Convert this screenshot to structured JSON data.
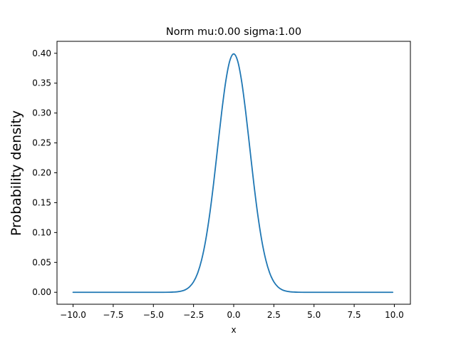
{
  "chart_data": {
    "type": "line",
    "title": "Norm mu:0.00 sigma:1.00",
    "xlabel": "x",
    "ylabel": "Probability density",
    "xlim": [
      -11.0,
      11.0
    ],
    "ylim": [
      -0.02,
      0.42
    ],
    "x_ticks": [
      -10.0,
      -7.5,
      -5.0,
      -2.5,
      0.0,
      2.5,
      5.0,
      7.5,
      10.0
    ],
    "x_tick_labels": [
      "−10.0",
      "−7.5",
      "−5.0",
      "−2.5",
      "0.0",
      "2.5",
      "5.0",
      "7.5",
      "10.0"
    ],
    "y_ticks": [
      0.0,
      0.05,
      0.1,
      0.15,
      0.2,
      0.25,
      0.3,
      0.35,
      0.4
    ],
    "y_tick_labels": [
      "0.00",
      "0.05",
      "0.10",
      "0.15",
      "0.20",
      "0.25",
      "0.30",
      "0.35",
      "0.40"
    ],
    "grid": false,
    "series": [
      {
        "color": "#1f77b4",
        "x": [
          -10.0,
          -8.0,
          -6.0,
          -5.0,
          -4.5,
          -4.0,
          -3.75,
          -3.5,
          -3.25,
          -3.0,
          -2.75,
          -2.5,
          -2.25,
          -2.0,
          -1.75,
          -1.5,
          -1.25,
          -1.0,
          -0.75,
          -0.5,
          -0.25,
          0.0,
          0.25,
          0.5,
          0.75,
          1.0,
          1.25,
          1.5,
          1.75,
          2.0,
          2.25,
          2.5,
          2.75,
          3.0,
          3.25,
          3.5,
          3.75,
          4.0,
          4.5,
          5.0,
          6.0,
          8.0,
          9.9
        ],
        "y": [
          0.0,
          0.0,
          0.0,
          0.0,
          0.0,
          0.0001,
          0.0004,
          0.0009,
          0.002,
          0.0044,
          0.0091,
          0.0175,
          0.0317,
          0.054,
          0.0863,
          0.1295,
          0.1826,
          0.242,
          0.3011,
          0.3521,
          0.3867,
          0.3989,
          0.3867,
          0.3521,
          0.3011,
          0.242,
          0.1826,
          0.1295,
          0.0863,
          0.054,
          0.0317,
          0.0175,
          0.0091,
          0.0044,
          0.002,
          0.0009,
          0.0004,
          0.0001,
          0.0,
          0.0,
          0.0,
          0.0,
          0.0
        ]
      }
    ]
  }
}
